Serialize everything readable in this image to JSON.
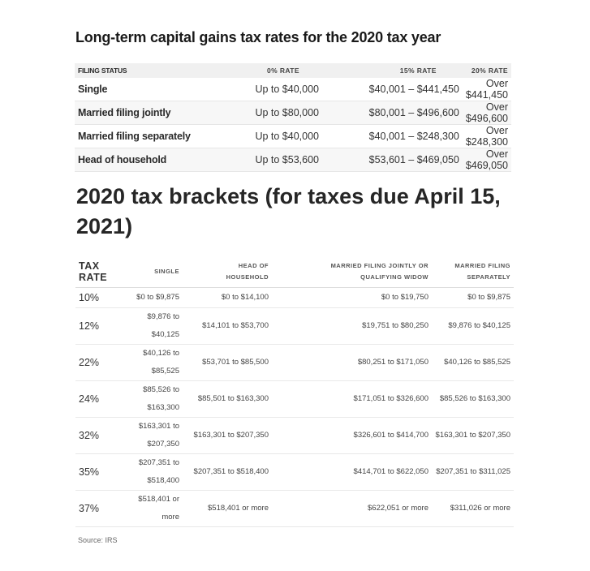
{
  "capital_gains": {
    "title": "Long-term capital gains tax rates for the 2020 tax year",
    "headers": {
      "status": "FILING STATUS",
      "rate0": "0% RATE",
      "rate15": "15% RATE",
      "rate20": "20% RATE"
    },
    "rows": [
      {
        "status": "Single",
        "rate0": "Up to $40,000",
        "rate15": "$40,001 – $441,450",
        "rate20": "Over $441,450"
      },
      {
        "status": "Married filing jointly",
        "rate0": "Up to $80,000",
        "rate15": "$80,001 – $496,600",
        "rate20": "Over $496,600"
      },
      {
        "status": "Married filing separately",
        "rate0": "Up to $40,000",
        "rate15": "$40,001 – $248,300",
        "rate20": "Over $248,300"
      },
      {
        "status": "Head of household",
        "rate0": "Up to $53,600",
        "rate15": "$53,601 – $469,050",
        "rate20": "Over $469,050"
      }
    ]
  },
  "brackets": {
    "title": "2020 tax brackets (for taxes due April 15, 2021)",
    "headers": {
      "rate_line1": "TAX",
      "rate_line2": "RATE",
      "single": "SINGLE",
      "hoh_line1": "HEAD OF",
      "hoh_line2": "HOUSEHOLD",
      "mfj_line1": "MARRIED FILING JOINTLY OR",
      "mfj_line2": "QUALIFYING WIDOW",
      "mfs_line1": "MARRIED FILING",
      "mfs_line2": "SEPARATELY"
    },
    "rows": [
      {
        "rate": "10%",
        "single_line1": "$0 to $9,875",
        "single_line2": "",
        "hoh": "$0 to $14,100",
        "mfj": "$0 to $19,750",
        "mfs": "$0 to $9,875"
      },
      {
        "rate": "12%",
        "single_line1": "$9,876 to",
        "single_line2": "$40,125",
        "hoh": "$14,101 to $53,700",
        "mfj": "$19,751 to $80,250",
        "mfs": "$9,876 to $40,125"
      },
      {
        "rate": "22%",
        "single_line1": "$40,126 to",
        "single_line2": "$85,525",
        "hoh": "$53,701 to $85,500",
        "mfj": "$80,251 to $171,050",
        "mfs": "$40,126 to $85,525"
      },
      {
        "rate": "24%",
        "single_line1": "$85,526 to",
        "single_line2": "$163,300",
        "hoh": "$85,501 to $163,300",
        "mfj": "$171,051 to $326,600",
        "mfs": "$85,526 to $163,300"
      },
      {
        "rate": "32%",
        "single_line1": "$163,301 to",
        "single_line2": "$207,350",
        "hoh": "$163,301 to $207,350",
        "mfj": "$326,601 to $414,700",
        "mfs": "$163,301 to $207,350"
      },
      {
        "rate": "35%",
        "single_line1": "$207,351 to",
        "single_line2": "$518,400",
        "hoh": "$207,351 to $518,400",
        "mfj": "$414,701 to $622,050",
        "mfs": "$207,351 to $311,025"
      },
      {
        "rate": "37%",
        "single_line1": "$518,401 or",
        "single_line2": "more",
        "hoh": "$518,401 or more",
        "mfj": "$622,051 or more",
        "mfs": "$311,026 or more"
      }
    ]
  },
  "source": "Source: IRS"
}
